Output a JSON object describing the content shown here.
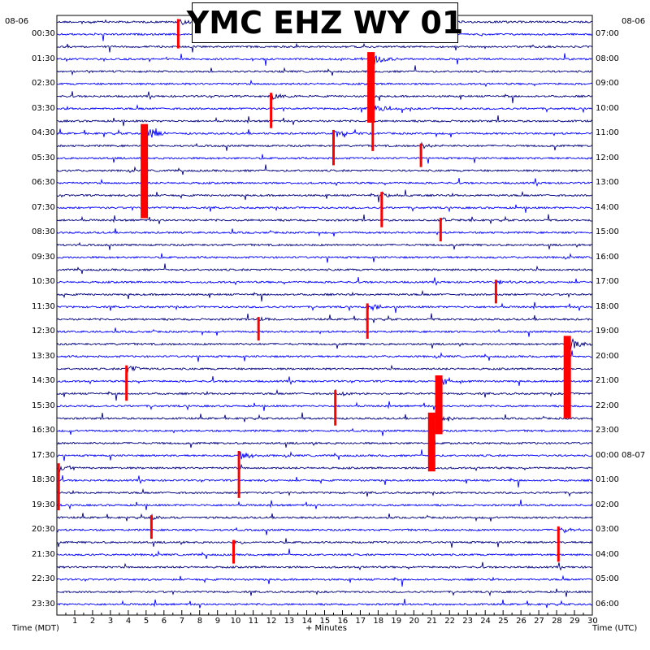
{
  "title": "YMC EHZ WY 01",
  "date_left": "08-06",
  "date_right": "08-06",
  "xlabel": "+ Minutes",
  "left_axis_label": "Time (MDT)",
  "right_axis_label": "Time (UTC)",
  "colors": {
    "trace_dark": "#000080",
    "trace_blue": "#0000ff",
    "clip": "#ff0000",
    "grid": "#000000"
  },
  "chart_data": {
    "type": "helicorder",
    "title": "YMC EHZ WY 01",
    "xlabel": "+ Minutes",
    "x_ticks": [
      "1",
      "2",
      "3",
      "4",
      "5",
      "6",
      "7",
      "8",
      "9",
      "10",
      "11",
      "12",
      "13",
      "14",
      "15",
      "16",
      "17",
      "18",
      "19",
      "20",
      "21",
      "22",
      "23",
      "24",
      "25",
      "26",
      "27",
      "28",
      "29",
      "30"
    ],
    "xlim": [
      0,
      30
    ],
    "minutes_per_line": 30,
    "line_count": 48,
    "left_tick_labels": [
      "00:30",
      "01:30",
      "02:30",
      "03:30",
      "04:30",
      "05:30",
      "06:30",
      "07:30",
      "08:30",
      "09:30",
      "10:30",
      "11:30",
      "12:30",
      "13:30",
      "14:30",
      "15:30",
      "16:30",
      "17:30",
      "18:30",
      "19:30",
      "20:30",
      "21:30",
      "22:30",
      "23:30"
    ],
    "right_tick_labels": [
      "07:00",
      "08:00",
      "09:00",
      "10:00",
      "11:00",
      "12:00",
      "13:00",
      "14:00",
      "15:00",
      "16:00",
      "17:00",
      "18:00",
      "19:00",
      "20:00",
      "21:00",
      "22:00",
      "23:00",
      "00:00 08-07",
      "01:00",
      "02:00",
      "03:00",
      "04:00",
      "05:00",
      "06:00"
    ],
    "events": [
      {
        "line": 0,
        "minute": 6.8,
        "amp": 2.5
      },
      {
        "line": 3,
        "minute": 17.6,
        "amp": 6
      },
      {
        "line": 6,
        "minute": 12.0,
        "amp": 3
      },
      {
        "line": 7,
        "minute": 17.7,
        "amp": 4
      },
      {
        "line": 9,
        "minute": 4.9,
        "amp": 8
      },
      {
        "line": 9,
        "minute": 15.5,
        "amp": 3
      },
      {
        "line": 10,
        "minute": 20.4,
        "amp": 2
      },
      {
        "line": 14,
        "minute": 18.2,
        "amp": 3
      },
      {
        "line": 16,
        "minute": 21.5,
        "amp": 2
      },
      {
        "line": 21,
        "minute": 24.6,
        "amp": 2
      },
      {
        "line": 23,
        "minute": 17.4,
        "amp": 3
      },
      {
        "line": 24,
        "minute": 11.3,
        "amp": 2
      },
      {
        "line": 26,
        "minute": 28.6,
        "amp": 7
      },
      {
        "line": 28,
        "minute": 3.9,
        "amp": 3
      },
      {
        "line": 29,
        "minute": 21.4,
        "amp": 5
      },
      {
        "line": 30,
        "minute": 15.6,
        "amp": 3
      },
      {
        "line": 32,
        "minute": 21.0,
        "amp": 5
      },
      {
        "line": 35,
        "minute": 10.2,
        "amp": 4
      },
      {
        "line": 36,
        "minute": 0.1,
        "amp": 4
      },
      {
        "line": 40,
        "minute": 5.3,
        "amp": 2
      },
      {
        "line": 41,
        "minute": 28.1,
        "amp": 3
      },
      {
        "line": 42,
        "minute": 9.9,
        "amp": 2
      }
    ]
  }
}
